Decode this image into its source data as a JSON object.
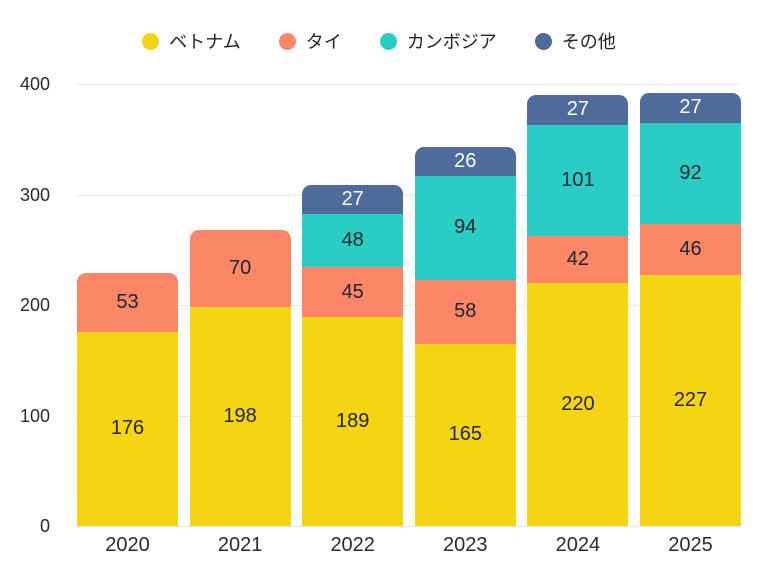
{
  "chart_data": {
    "type": "bar",
    "stacked": true,
    "title": "",
    "xlabel": "",
    "ylabel": "",
    "categories": [
      "2020",
      "2021",
      "2022",
      "2023",
      "2024",
      "2025"
    ],
    "series": [
      {
        "name": "ベトナム",
        "color": "#f5d411",
        "label_color": "#23262e",
        "values": [
          176,
          198,
          189,
          165,
          220,
          227
        ]
      },
      {
        "name": "タイ",
        "color": "#fb8767",
        "label_color": "#23262e",
        "values": [
          53,
          70,
          45,
          58,
          42,
          46
        ]
      },
      {
        "name": "カンボジア",
        "color": "#2accc6",
        "label_color": "#23262e",
        "values": [
          0,
          0,
          48,
          94,
          101,
          92
        ]
      },
      {
        "name": "その他",
        "color": "#4e6b9b",
        "label_color": "#ffffff",
        "values": [
          0,
          0,
          27,
          26,
          27,
          27
        ]
      }
    ],
    "totals": [
      229,
      268,
      309,
      343,
      390,
      392
    ],
    "ylim": [
      0,
      400
    ],
    "yticks": [
      "0",
      "100",
      "200",
      "300",
      "400"
    ],
    "legend_position": "top",
    "grid": true,
    "axis_text_color": "#2b2b2b",
    "gridline_color": "#e7e7e7",
    "background_color": "#ffffff"
  }
}
